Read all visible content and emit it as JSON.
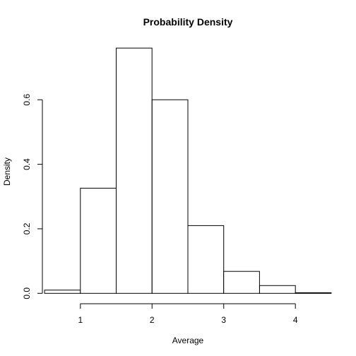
{
  "chart_data": {
    "type": "bar",
    "title": "Probability Density",
    "xlabel": "Average",
    "ylabel": "Density",
    "xlim": [
      0.46,
      4.54
    ],
    "ylim": [
      -0.03,
      0.78
    ],
    "x_ticks": [
      1,
      2,
      3,
      4
    ],
    "y_ticks": [
      0.0,
      0.2,
      0.4,
      0.6
    ],
    "x_tick_labels": [
      "1",
      "2",
      "3",
      "4"
    ],
    "y_tick_labels": [
      "0.0",
      "0.2",
      "0.4",
      "0.6"
    ],
    "bins": [
      {
        "start": 0.5,
        "end": 1.0,
        "density": 0.01
      },
      {
        "start": 1.0,
        "end": 1.5,
        "density": 0.326
      },
      {
        "start": 1.5,
        "end": 2.0,
        "density": 0.76
      },
      {
        "start": 2.0,
        "end": 2.5,
        "density": 0.6
      },
      {
        "start": 2.5,
        "end": 3.0,
        "density": 0.21
      },
      {
        "start": 3.0,
        "end": 3.5,
        "density": 0.068
      },
      {
        "start": 3.5,
        "end": 4.0,
        "density": 0.024
      },
      {
        "start": 4.0,
        "end": 4.5,
        "density": 0.002
      }
    ],
    "grid": false
  }
}
